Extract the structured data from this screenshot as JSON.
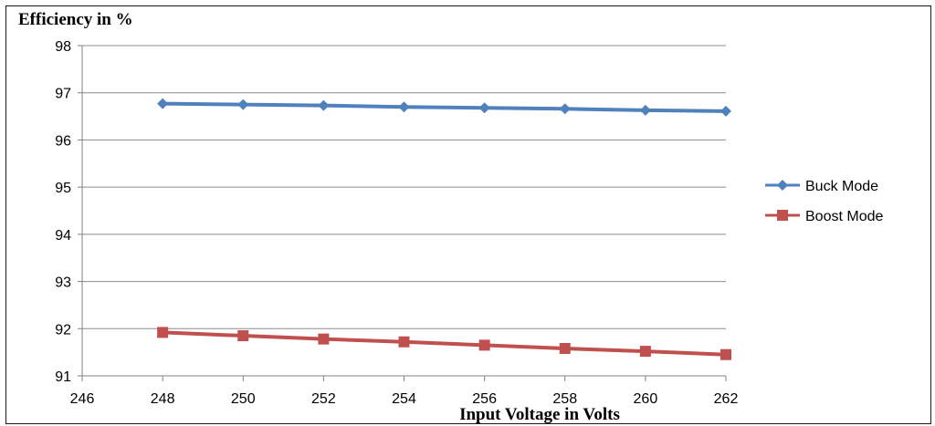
{
  "chart_data": {
    "type": "line",
    "title": "",
    "ylabel": "Efficiency in %",
    "xlabel": "Input Voltage in Volts",
    "x": [
      248,
      250,
      252,
      254,
      256,
      258,
      260,
      262
    ],
    "xlim": [
      246,
      262
    ],
    "ylim": [
      91,
      98
    ],
    "x_ticks": [
      "246",
      "248",
      "250",
      "252",
      "254",
      "256",
      "258",
      "260",
      "262"
    ],
    "y_ticks": [
      "91",
      "92",
      "93",
      "94",
      "95",
      "96",
      "97",
      "98"
    ],
    "grid": "horizontal",
    "legend_position": "right",
    "series": [
      {
        "name": "Buck Mode",
        "marker": "diamond",
        "color": "#4F81BD",
        "values": [
          96.77,
          96.75,
          96.73,
          96.7,
          96.68,
          96.66,
          96.63,
          96.61
        ]
      },
      {
        "name": "Boost Mode",
        "marker": "square",
        "color": "#C0504D",
        "values": [
          91.92,
          91.85,
          91.78,
          91.72,
          91.65,
          91.58,
          91.52,
          91.45
        ]
      }
    ]
  }
}
